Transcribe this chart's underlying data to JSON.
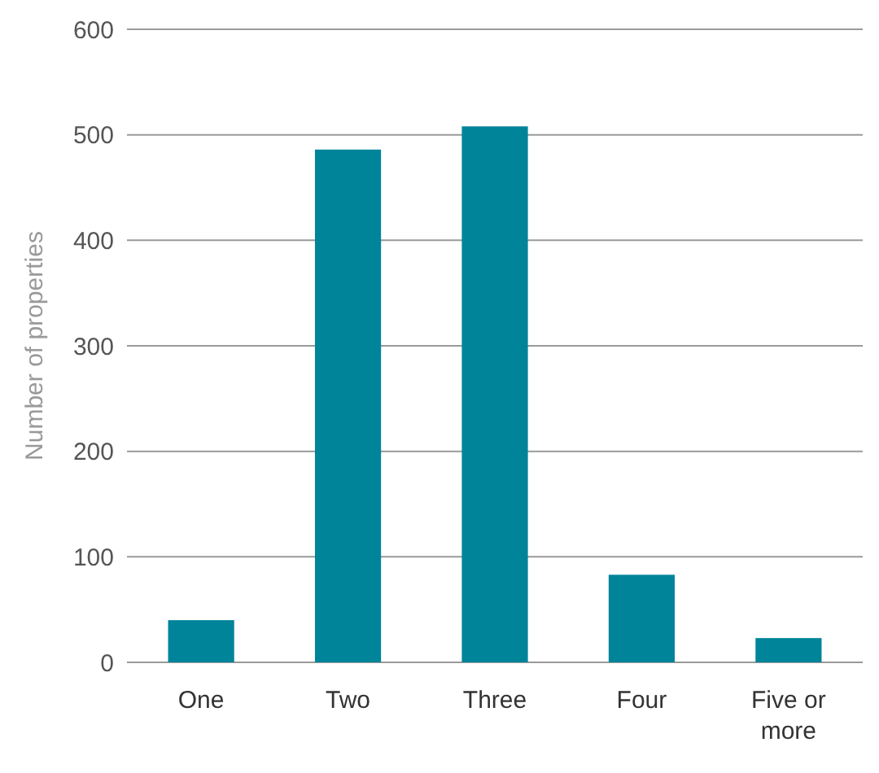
{
  "chart_data": {
    "type": "bar",
    "ylabel": "Number of properties",
    "categories": [
      "One",
      "Two",
      "Three",
      "Four",
      "Five or more"
    ],
    "values": [
      40,
      486,
      508,
      83,
      23
    ],
    "color": "#00849a",
    "ylim": [
      0,
      600
    ],
    "yticks": [
      0,
      100,
      200,
      300,
      400,
      500,
      600
    ],
    "grid": "y"
  }
}
